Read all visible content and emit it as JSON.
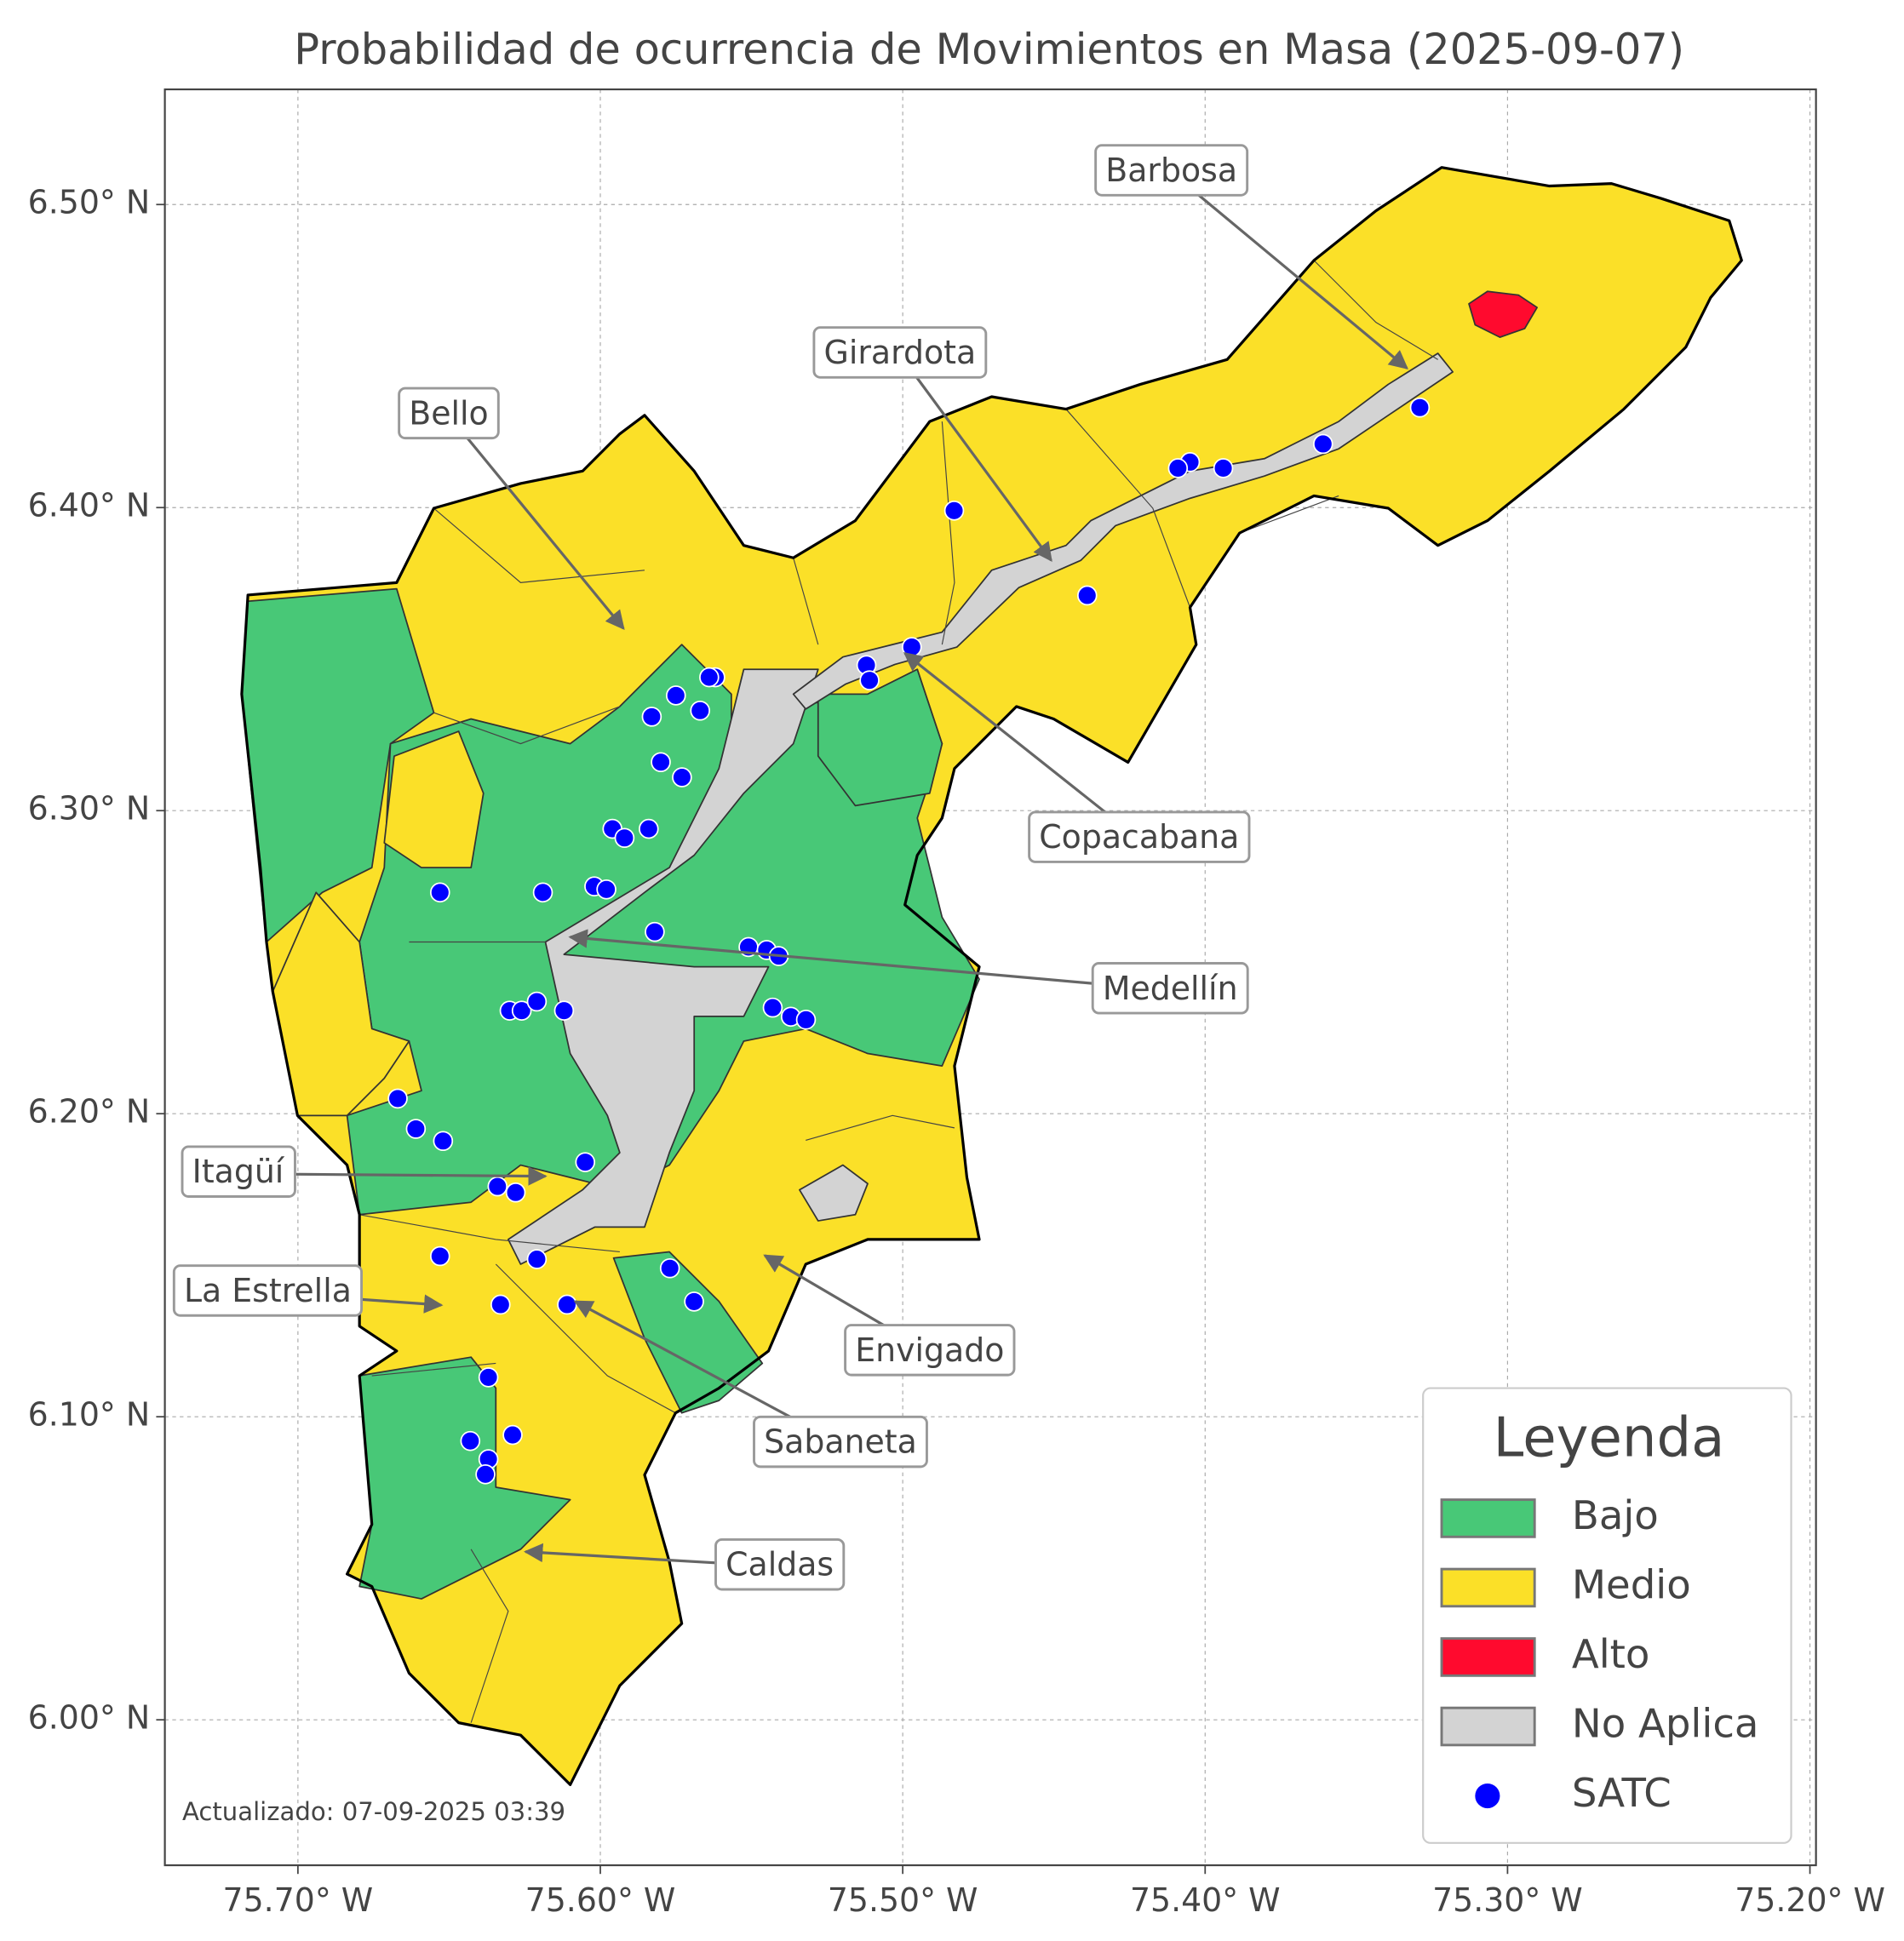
{
  "map": {
    "title": "Probabilidad de ocurrencia de Movimientos en Masa (2025-09-07)",
    "footer": "Actualizado: 07-09-2025 03:39",
    "xlim": [
      -75.744,
      -75.198
    ],
    "ylim": [
      5.952,
      6.538
    ],
    "xticks": [
      {
        "value": -75.7,
        "label": "75.70° W"
      },
      {
        "value": -75.6,
        "label": "75.60° W"
      },
      {
        "value": -75.5,
        "label": "75.50° W"
      },
      {
        "value": -75.4,
        "label": "75.40° W"
      },
      {
        "value": -75.3,
        "label": "75.30° W"
      },
      {
        "value": -75.2,
        "label": "75.20° W"
      }
    ],
    "yticks": [
      {
        "value": 6.0,
        "label": "6.00° N"
      },
      {
        "value": 6.1,
        "label": "6.10° N"
      },
      {
        "value": 6.2,
        "label": "6.20° N"
      },
      {
        "value": 6.3,
        "label": "6.30° N"
      },
      {
        "value": 6.4,
        "label": "6.40° N"
      },
      {
        "value": 6.5,
        "label": "6.50° N"
      }
    ],
    "grid": true,
    "annotations": [
      "Barbosa",
      "Girardota",
      "Bello",
      "Copacabana",
      "Medellín",
      "Itagüí",
      "La Estrella",
      "Envigado",
      "Sabaneta",
      "Caldas"
    ],
    "legend": {
      "title": "Leyenda",
      "items": [
        {
          "label": "Bajo",
          "color": "#48c877",
          "shape": "patch"
        },
        {
          "label": "Medio",
          "color": "#fbe028",
          "shape": "patch"
        },
        {
          "label": "Alto",
          "color": "#ff0a2e",
          "shape": "patch"
        },
        {
          "label": "No Aplica",
          "color": "#d3d3d3",
          "shape": "patch"
        },
        {
          "label": "SATC",
          "color": "#0000ff",
          "shape": "circle"
        }
      ]
    },
    "satc": {
      "lon": [
        -75.329,
        -75.361,
        -75.394,
        -75.405,
        -75.409,
        -75.483,
        -75.439,
        -75.497,
        -75.512,
        -75.511,
        -75.562,
        -75.564,
        -75.575,
        -75.583,
        -75.567,
        -75.58,
        -75.573,
        -75.596,
        -75.592,
        -75.584,
        -75.653,
        -75.619,
        -75.602,
        -75.598,
        -75.582,
        -75.551,
        -75.545,
        -75.541,
        -75.543,
        -75.537,
        -75.532,
        -75.63,
        -75.626,
        -75.621,
        -75.612,
        -75.667,
        -75.661,
        -75.652,
        -75.605,
        -75.634,
        -75.628,
        -75.653,
        -75.621,
        -75.577,
        -75.569,
        -75.633,
        -75.611,
        -75.637,
        -75.643,
        -75.629,
        -75.637,
        -75.638
      ],
      "lat": [
        6.433,
        6.421,
        6.413,
        6.415,
        6.413,
        6.399,
        6.371,
        6.354,
        6.348,
        6.343,
        6.344,
        6.344,
        6.338,
        6.331,
        6.333,
        6.316,
        6.311,
        6.294,
        6.291,
        6.294,
        6.273,
        6.273,
        6.275,
        6.274,
        6.26,
        6.255,
        6.254,
        6.252,
        6.235,
        6.232,
        6.231,
        6.234,
        6.234,
        6.237,
        6.234,
        6.205,
        6.195,
        6.191,
        6.184,
        6.176,
        6.174,
        6.153,
        6.152,
        6.149,
        6.138,
        6.137,
        6.137,
        6.113,
        6.092,
        6.094,
        6.086,
        6.081
      ]
    }
  }
}
